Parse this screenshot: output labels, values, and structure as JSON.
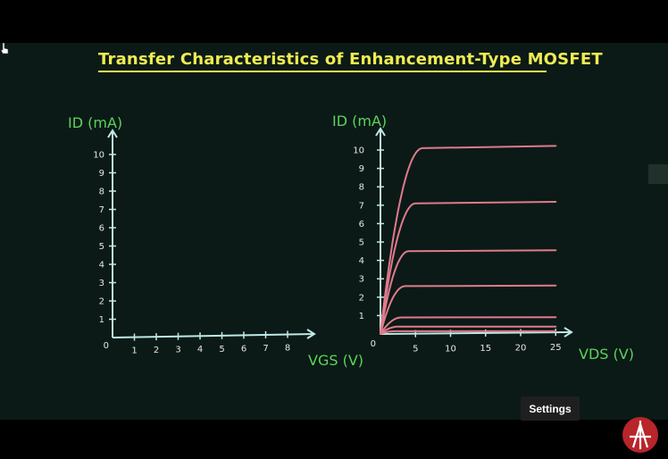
{
  "video": {
    "title": "Transfer Characteristics of Enhancement-Type MOSFET",
    "settings_tooltip": "Settings",
    "colors": {
      "board": "#0b1a16",
      "title": "#f0ec52",
      "axis_label": "#5bd35b",
      "axis": "#bfe9e6",
      "curve": "#e07a8c",
      "logo": "#b8252b"
    },
    "icons": [
      "cursor-icon",
      "channel-logo-icon"
    ]
  },
  "chart_data": [
    {
      "type": "line",
      "title": "",
      "xlabel": "VGS (V)",
      "ylabel": "ID (mA)",
      "x_ticks": [
        "0",
        "1",
        "2",
        "3",
        "4",
        "5",
        "6",
        "7",
        "8"
      ],
      "y_ticks": [
        "1",
        "2",
        "3",
        "4",
        "5",
        "6",
        "7",
        "8",
        "9",
        "10"
      ],
      "xlim": [
        0,
        9
      ],
      "ylim": [
        0,
        11
      ],
      "series": []
    },
    {
      "type": "line",
      "title": "",
      "xlabel": "VDS (V)",
      "ylabel": "ID (mA)",
      "x_ticks": [
        "0",
        "5",
        "10",
        "15",
        "20",
        "25"
      ],
      "y_ticks": [
        "1",
        "2",
        "3",
        "4",
        "5",
        "6",
        "7",
        "8",
        "9",
        "10"
      ],
      "xlim": [
        0,
        27
      ],
      "ylim": [
        0,
        11
      ],
      "series": [
        {
          "saturation": 10.1,
          "knee": 6
        },
        {
          "saturation": 7.1,
          "knee": 5
        },
        {
          "saturation": 4.5,
          "knee": 4
        },
        {
          "saturation": 2.6,
          "knee": 3.5
        },
        {
          "saturation": 0.9,
          "knee": 3
        },
        {
          "saturation": 0.4,
          "knee": 2.5
        },
        {
          "saturation": 0.15,
          "knee": 2
        }
      ]
    }
  ]
}
